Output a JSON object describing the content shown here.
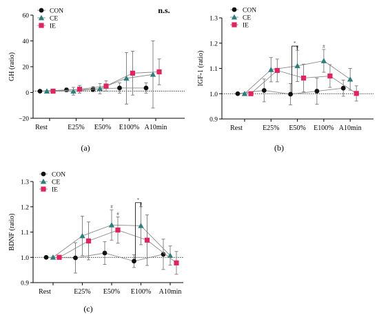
{
  "chart_data": [
    {
      "type": "line",
      "panel_label": "(a)",
      "ylabel": "GH (ratio)",
      "ylim": [
        -20,
        60
      ],
      "yticks": [
        "−20",
        "0",
        "20",
        "40",
        "60"
      ],
      "ytick_values": [
        -20,
        0,
        20,
        40,
        60
      ],
      "categories": [
        "Rest",
        "E25%",
        "E50%",
        "E100%",
        "A10min"
      ],
      "reference_line": 1,
      "annotation": "n.s.",
      "series": [
        {
          "name": "CON",
          "marker": "circle",
          "color": "#111111",
          "values": [
            1,
            2,
            2.5,
            3.5,
            3.5
          ],
          "errors": [
            0.5,
            1.5,
            2,
            4,
            4
          ]
        },
        {
          "name": "CE",
          "marker": "triangle",
          "color": "#2e7d7d",
          "values": [
            1,
            1,
            3,
            11,
            14
          ],
          "errors": [
            0.5,
            3,
            4,
            20,
            26
          ]
        },
        {
          "name": "IE",
          "marker": "square",
          "color": "#e0245e",
          "values": [
            1,
            2.5,
            5,
            15,
            16
          ],
          "errors": [
            0.5,
            3,
            4,
            17,
            10
          ]
        }
      ],
      "significance": []
    },
    {
      "type": "line",
      "panel_label": "(b)",
      "ylabel": "IGF-1 (ratio)",
      "ylim": [
        0.9,
        1.3
      ],
      "yticks": [
        "0.9",
        "1.0",
        "1.1",
        "1.2",
        "1.3"
      ],
      "ytick_values": [
        0.9,
        1.0,
        1.1,
        1.2,
        1.3
      ],
      "categories": [
        "Rest",
        "E25%",
        "E50%",
        "E100%",
        "A10min"
      ],
      "reference_line": 1,
      "series": [
        {
          "name": "CON",
          "marker": "circle",
          "color": "#111111",
          "values": [
            1.0,
            1.013,
            0.998,
            1.01,
            1.022
          ],
          "errors": [
            0.003,
            0.045,
            0.042,
            0.052,
            0.032
          ]
        },
        {
          "name": "CE",
          "marker": "triangle",
          "color": "#2e7d7d",
          "values": [
            1.0,
            1.095,
            1.11,
            1.13,
            1.057
          ],
          "errors": [
            0.003,
            0.048,
            0.062,
            0.045,
            0.043
          ]
        },
        {
          "name": "IE",
          "marker": "square",
          "color": "#e0245e",
          "values": [
            1.0,
            1.092,
            1.062,
            1.07,
            1.001
          ],
          "errors": [
            0.003,
            0.045,
            0.055,
            0.045,
            0.03
          ]
        }
      ],
      "significance": [
        {
          "category_index": 2,
          "series": "CE",
          "mark": "#"
        },
        {
          "category_index": 3,
          "series": "CE",
          "mark": "#"
        },
        {
          "category_index": 2,
          "bracket": true,
          "mark": "*"
        }
      ]
    },
    {
      "type": "line",
      "panel_label": "(c)",
      "ylabel": "BDNF (ratio)",
      "ylim": [
        0.9,
        1.3
      ],
      "yticks": [
        "0.9",
        "1.0",
        "1.1",
        "1.2",
        "1.3"
      ],
      "ytick_values": [
        0.9,
        1.0,
        1.1,
        1.2,
        1.3
      ],
      "categories": [
        "Rest",
        "E25%",
        "E50%",
        "E100%",
        "A10min"
      ],
      "reference_line": 1,
      "series": [
        {
          "name": "CON",
          "marker": "circle",
          "color": "#111111",
          "values": [
            1.0,
            0.998,
            1.017,
            0.985,
            1.012
          ],
          "errors": [
            0.003,
            0.06,
            0.045,
            0.025,
            0.06
          ]
        },
        {
          "name": "CE",
          "marker": "triangle",
          "color": "#2e7d7d",
          "values": [
            1.0,
            1.085,
            1.128,
            1.125,
            1.007
          ],
          "errors": [
            0.003,
            0.078,
            0.06,
            0.075,
            0.038
          ]
        },
        {
          "name": "IE",
          "marker": "square",
          "color": "#e0245e",
          "values": [
            1.0,
            1.065,
            1.108,
            1.068,
            0.978
          ],
          "errors": [
            0.003,
            0.075,
            0.052,
            0.1,
            0.045
          ]
        }
      ],
      "significance": [
        {
          "category_index": 2,
          "series": "CE",
          "mark": "#"
        },
        {
          "category_index": 2,
          "series": "IE",
          "mark": "#"
        },
        {
          "category_index": 3,
          "series": "CE",
          "mark": "#"
        },
        {
          "category_index": 3,
          "bracket": true,
          "mark": "*"
        }
      ]
    }
  ]
}
